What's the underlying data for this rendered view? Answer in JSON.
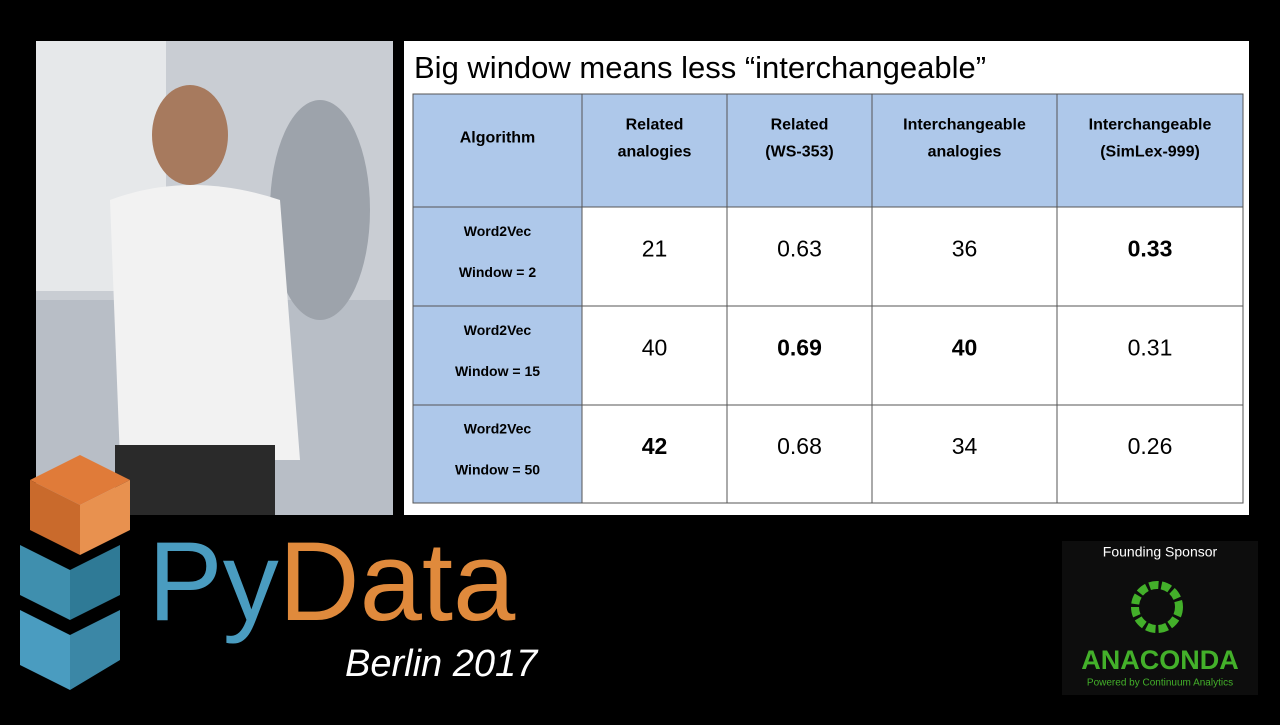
{
  "slide": {
    "title": "Big window means less “interchangeable”",
    "table": {
      "header": [
        [
          "Algorithm"
        ],
        [
          "Related",
          "analogies"
        ],
        [
          "Related",
          "(WS-353)"
        ],
        [
          "Interchangeable",
          "analogies"
        ],
        [
          "Interchangeable",
          "(SimLex-999)"
        ]
      ],
      "rows": [
        {
          "label": [
            "Word2Vec",
            "Window = 2"
          ],
          "cells": [
            "21",
            "0.63",
            "36",
            "0.33"
          ],
          "bold": [
            false,
            false,
            false,
            true
          ]
        },
        {
          "label": [
            "Word2Vec",
            "Window = 15"
          ],
          "cells": [
            "40",
            "0.69",
            "40",
            "0.31"
          ],
          "bold": [
            false,
            true,
            true,
            false
          ]
        },
        {
          "label": [
            "Word2Vec",
            "Window = 50"
          ],
          "cells": [
            "42",
            "0.68",
            "34",
            "0.26"
          ],
          "bold": [
            true,
            false,
            false,
            false
          ]
        }
      ]
    }
  },
  "branding": {
    "logo_part1": "Py",
    "logo_part2": "Data",
    "event": "Berlin 2017",
    "sponsor_heading": "Founding Sponsor",
    "sponsor_name": "ANACONDA",
    "sponsor_tagline": "Powered by Continuum Analytics"
  }
}
